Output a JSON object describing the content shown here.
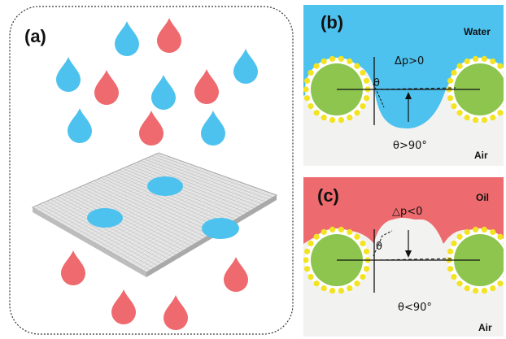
{
  "panel_a": {
    "label": "(a)"
  },
  "panel_b": {
    "label": "(b)",
    "top_medium": "Water",
    "bottom_medium": "Air",
    "pressure": "Δp>0",
    "theta_symbol": "θ",
    "angle_condition": "θ>90°",
    "colors": {
      "liquid": "#4ec2ee",
      "bottom": "#f2f2f0"
    }
  },
  "panel_c": {
    "label": "(c)",
    "top_medium": "Oil",
    "bottom_medium": "Air",
    "pressure": "△p<0",
    "theta_symbol": "θ",
    "angle_condition": "θ<90°",
    "colors": {
      "liquid": "#ed6a6e",
      "bottom": "#f2f2f0"
    }
  },
  "colors": {
    "water_drop": "#4ec2ee",
    "oil_drop": "#ee6a6e",
    "fiber_core": "#8dc54f",
    "particle": "#f3e321",
    "mesh": "#d9d9d9",
    "mesh_line": "#9b9b9b"
  }
}
